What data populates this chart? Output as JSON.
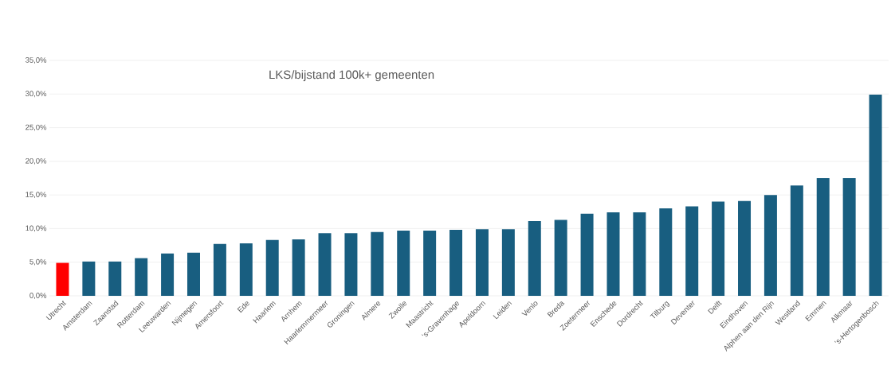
{
  "chart_data": {
    "type": "bar",
    "title": "LKS/bijstand 100k+ gemeenten",
    "categories": [
      "Utrecht",
      "Amsterdam",
      "Zaanstad",
      "Rotterdam",
      "Leeuwarden",
      "Nijmegen",
      "Amersfoort",
      "Ede",
      "Haarlem",
      "Arnhem",
      "Haarlemmermeer",
      "Groningen",
      "Almere",
      "Zwolle",
      "Maastricht",
      "‘s-Gravenhage",
      "Apeldoorn",
      "Leiden",
      "Venlo",
      "Breda",
      "Zoetermeer",
      "Enschede",
      "Dordrecht",
      "Tilburg",
      "Deventer",
      "Delft",
      "Eindhoven",
      "Alphen aan den Rijn",
      "Westland",
      "Emmen",
      "Alkmaar",
      "‘s-Hertogenbosch"
    ],
    "values": [
      4.9,
      5.1,
      5.1,
      5.6,
      6.3,
      6.4,
      7.7,
      7.8,
      8.3,
      8.4,
      9.3,
      9.3,
      9.5,
      9.7,
      9.7,
      9.8,
      9.9,
      9.9,
      11.1,
      11.3,
      12.2,
      12.4,
      12.4,
      13.0,
      13.3,
      14.0,
      14.1,
      15.0,
      16.4,
      17.5,
      17.5,
      29.9
    ],
    "colors": [
      "#ff0000",
      "#185e80",
      "#185e80",
      "#185e80",
      "#185e80",
      "#185e80",
      "#185e80",
      "#185e80",
      "#185e80",
      "#185e80",
      "#185e80",
      "#185e80",
      "#185e80",
      "#185e80",
      "#185e80",
      "#185e80",
      "#185e80",
      "#185e80",
      "#185e80",
      "#185e80",
      "#185e80",
      "#185e80",
      "#185e80",
      "#185e80",
      "#185e80",
      "#185e80",
      "#185e80",
      "#185e80",
      "#185e80",
      "#185e80",
      "#185e80",
      "#185e80"
    ],
    "ylim": [
      0,
      35
    ],
    "yticks": [
      {
        "value": 0,
        "label": "0,0%"
      },
      {
        "value": 5,
        "label": "5,0%"
      },
      {
        "value": 10,
        "label": "10,0%"
      },
      {
        "value": 15,
        "label": "15,0%"
      },
      {
        "value": 20,
        "label": "20,0%"
      },
      {
        "value": 25,
        "label": "25,0%"
      },
      {
        "value": 30,
        "label": "30,0%"
      },
      {
        "value": 35,
        "label": "35,0%"
      }
    ],
    "grid": "y"
  }
}
